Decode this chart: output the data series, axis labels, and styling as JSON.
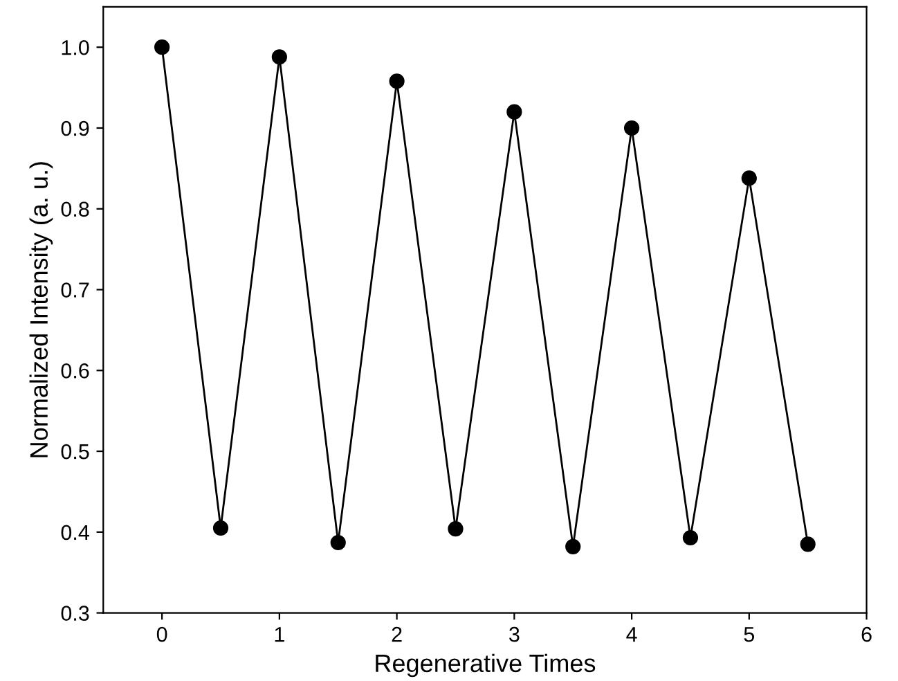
{
  "chart_data": {
    "type": "line",
    "xlabel": "Regenerative Times",
    "ylabel": "Normalized Intensity (a. u.)",
    "x": [
      0,
      0.5,
      1,
      1.5,
      2,
      2.5,
      3,
      3.5,
      4,
      4.5,
      5,
      5.5
    ],
    "series": [
      {
        "color": "#000000",
        "values": [
          1.0,
          0.405,
          0.988,
          0.387,
          0.958,
          0.404,
          0.92,
          0.382,
          0.9,
          0.393,
          0.838,
          0.385
        ]
      }
    ],
    "xlim": [
      -0.5,
      6
    ],
    "xticks": [
      0,
      1,
      2,
      3,
      4,
      5,
      6
    ],
    "ylim": [
      0.3,
      1.05
    ],
    "yticks": [
      {
        "value": 0.3,
        "label": "0.3"
      },
      {
        "value": 0.4,
        "label": "0.4"
      },
      {
        "value": 0.5,
        "label": "0.5"
      },
      {
        "value": 0.6,
        "label": "0.6"
      },
      {
        "value": 0.7,
        "label": "0.7"
      },
      {
        "value": 0.8,
        "label": "0.8"
      },
      {
        "value": 0.9,
        "label": "0.9"
      },
      {
        "value": 1.0,
        "label": "1.0"
      }
    ],
    "marker": "circle",
    "line_style": "solid",
    "grid": false,
    "legend": false
  }
}
